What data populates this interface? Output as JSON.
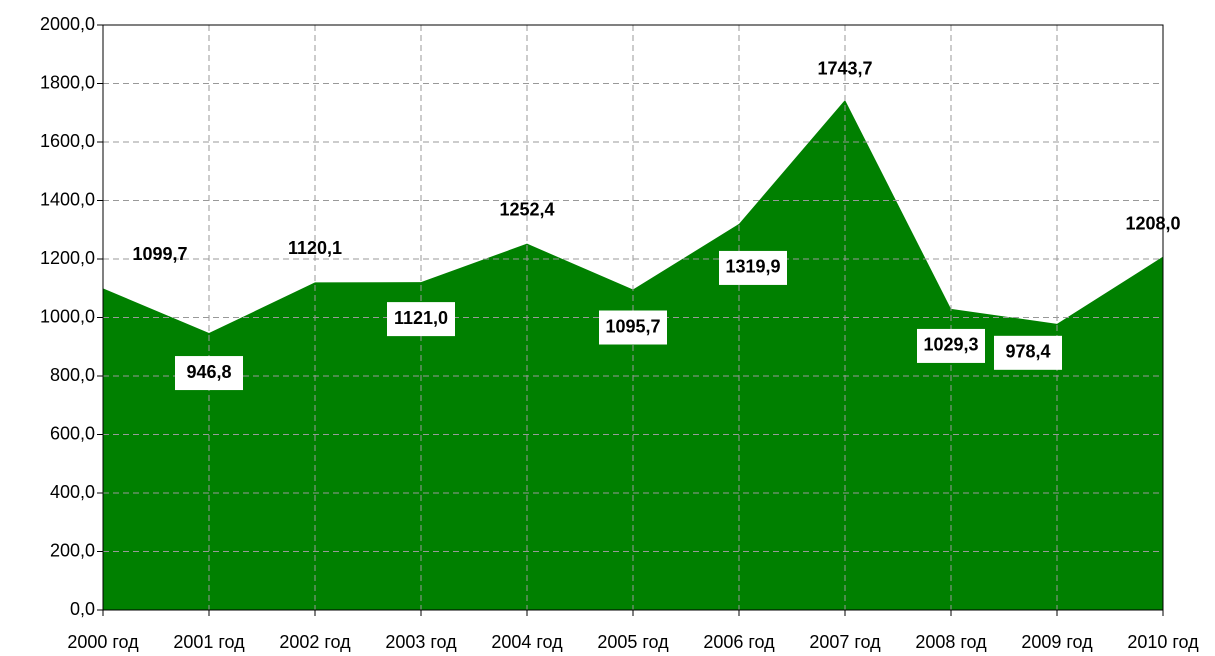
{
  "chart_data": {
    "type": "area",
    "categories": [
      "2000 год",
      "2001 год",
      "2002 год",
      "2003 год",
      "2004 год",
      "2005 год",
      "2006 год",
      "2007 год",
      "2008 год",
      "2009 год",
      "2010 год"
    ],
    "series": [
      {
        "color": "#008000",
        "values": [
          1099.7,
          946.8,
          1120.1,
          1121.0,
          1252.4,
          1095.7,
          1319.9,
          1743.7,
          1029.3,
          978.4,
          1208.0
        ],
        "value_labels": [
          "1099,7",
          "946,8",
          "1120,1",
          "1121,0",
          "1252,4",
          "1095,7",
          "1319,9",
          "1743,7",
          "1029,3",
          "978,4",
          "1208,0"
        ]
      }
    ],
    "ylim": [
      0,
      2000
    ],
    "yticks": [
      {
        "value": 0,
        "label": "0,0"
      },
      {
        "value": 200,
        "label": "200,0"
      },
      {
        "value": 400,
        "label": "400,0"
      },
      {
        "value": 600,
        "label": "600,0"
      },
      {
        "value": 800,
        "label": "800,0"
      },
      {
        "value": 1000,
        "label": "1000,0"
      },
      {
        "value": 1200,
        "label": "1200,0"
      },
      {
        "value": 1400,
        "label": "1400,0"
      },
      {
        "value": 1600,
        "label": "1600,0"
      },
      {
        "value": 1800,
        "label": "1800,0"
      },
      {
        "value": 2000,
        "label": "2000,0"
      }
    ],
    "grid": true
  }
}
